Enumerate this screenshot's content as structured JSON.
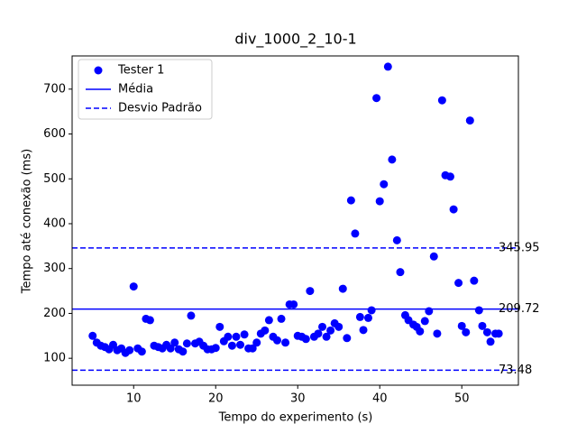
{
  "chart_data": {
    "type": "scatter",
    "title": "div_1000_2_10-1",
    "x_label": "Tempo do experimento (s)",
    "y_label": "Tempo até conexão (ms)",
    "xlim": [
      2.5,
      56.9
    ],
    "ylim": [
      40,
      774
    ],
    "xticks": [
      10,
      20,
      30,
      40,
      50
    ],
    "yticks": [
      100,
      200,
      300,
      400,
      500,
      600,
      700
    ],
    "legend": "upper left",
    "series": [
      {
        "name": "Tester 1",
        "color": "#0000ff",
        "x": [
          5,
          5.5,
          6,
          6.5,
          7,
          7.5,
          8,
          8.5,
          9,
          9.5,
          10,
          10.5,
          11,
          11.5,
          12,
          12.5,
          13,
          13.5,
          14,
          14.5,
          15,
          15.5,
          16,
          16.5,
          17,
          17.5,
          18,
          18.5,
          19,
          19.5,
          20,
          20.5,
          21,
          21.5,
          22,
          22.5,
          23,
          23.5,
          24,
          24.5,
          25,
          25.5,
          26,
          26.5,
          27,
          27.5,
          28,
          28.5,
          29,
          29.5,
          30,
          30.5,
          31,
          31.5,
          32,
          32.5,
          33,
          33.5,
          34,
          34.5,
          35,
          35.5,
          36,
          36.5,
          37,
          37.6,
          38,
          38.6,
          39,
          39.6,
          40,
          40.5,
          41,
          41.5,
          42.1,
          42.5,
          43.1,
          43.5,
          44.1,
          44.5,
          44.9,
          45.5,
          46,
          46.6,
          47,
          47.6,
          48,
          48.6,
          49,
          49.6,
          50,
          50.5,
          51,
          51.5,
          52.1,
          52.5,
          53.1,
          53.5,
          54.1,
          54.5
        ],
        "values": [
          150,
          135,
          128,
          125,
          120,
          130,
          118,
          122,
          112,
          118,
          260,
          122,
          115,
          188,
          185,
          128,
          125,
          122,
          130,
          122,
          135,
          120,
          115,
          133,
          195,
          133,
          137,
          128,
          120,
          120,
          123,
          170,
          138,
          148,
          128,
          148,
          130,
          153,
          122,
          122,
          135,
          155,
          162,
          185,
          148,
          140,
          188,
          135,
          220,
          220,
          150,
          148,
          143,
          250,
          148,
          155,
          170,
          148,
          162,
          178,
          170,
          255,
          145,
          452,
          378,
          192,
          163,
          190,
          207,
          680,
          450,
          488,
          750,
          543,
          363,
          292,
          196,
          185,
          175,
          170,
          160,
          183,
          205,
          327,
          155,
          675,
          508,
          505,
          432,
          268,
          172,
          158,
          630,
          273,
          207,
          172,
          158,
          137,
          155,
          155
        ]
      }
    ],
    "mean": {
      "name": "Média",
      "value": 209.72,
      "color": "#0000ff"
    },
    "std": {
      "name": "Desvio Padrão",
      "values": [
        345.95,
        73.48
      ],
      "color": "#0000ff"
    }
  }
}
